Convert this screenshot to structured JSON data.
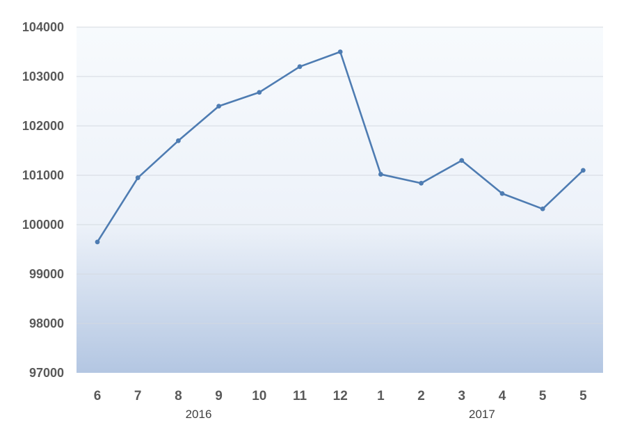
{
  "chart_data": {
    "type": "line",
    "title": "",
    "xlabel": "",
    "ylabel": "",
    "ylim": [
      97000,
      104000
    ],
    "yticks": [
      "104000",
      "103000",
      "102000",
      "101000",
      "100000",
      "99000",
      "98000",
      "97000"
    ],
    "ytick_values": [
      104000,
      103000,
      102000,
      101000,
      100000,
      99000,
      98000,
      97000
    ],
    "categories": [
      "6",
      "7",
      "8",
      "9",
      "10",
      "11",
      "12",
      "1",
      "2",
      "3",
      "4",
      "5",
      "5"
    ],
    "year_labels": [
      {
        "text": "2016",
        "under_category_index": 2.5
      },
      {
        "text": "2017",
        "under_category_index": 9.5
      }
    ],
    "series": [
      {
        "values": [
          99650,
          100950,
          101700,
          102400,
          102680,
          103200,
          103500,
          101020,
          100840,
          101300,
          100630,
          100320,
          101100
        ],
        "color": "#4e7cb2"
      }
    ],
    "grid": true,
    "legend": "none",
    "background_gradient": {
      "top": "#f7fafd",
      "bottom": "#b3c6e2"
    }
  }
}
